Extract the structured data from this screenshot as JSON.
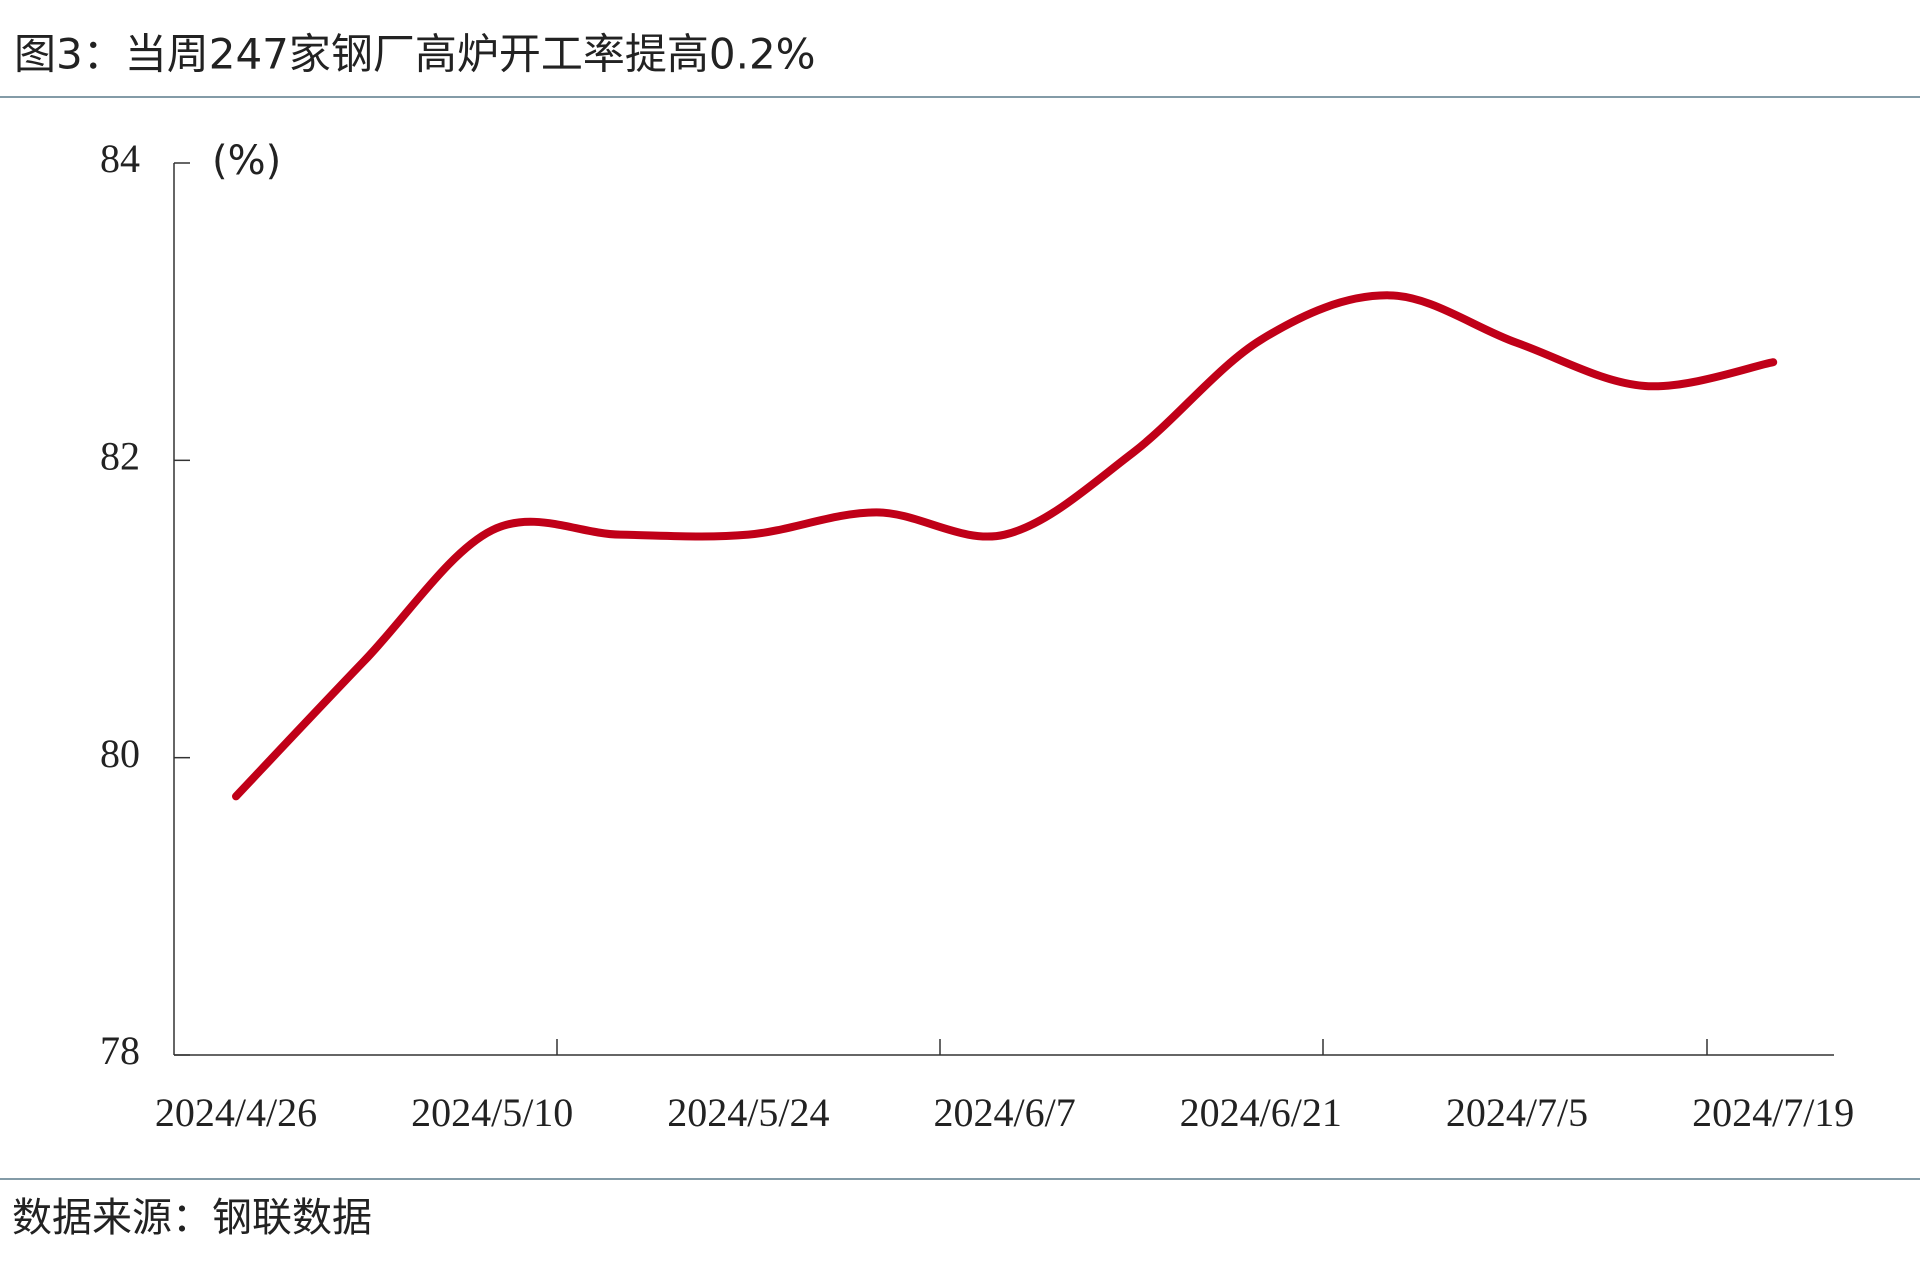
{
  "chart_data": {
    "type": "line",
    "title": "图3：当周247家钢厂高炉开工率提高0.2%",
    "y_label": "(%)",
    "source": "数据来源：钢联数据",
    "categories": [
      "2024/4/26",
      null,
      "2024/5/10",
      null,
      "2024/5/24",
      null,
      "2024/6/7",
      null,
      "2024/6/21",
      null,
      "2024/7/5",
      null,
      "2024/7/19"
    ],
    "series": [
      {
        "name": "高炉开工率",
        "color": "#c00018",
        "values": [
          79.74,
          80.65,
          81.53,
          81.5,
          81.5,
          81.65,
          81.5,
          82.05,
          82.81,
          83.11,
          82.79,
          82.5,
          82.66
        ]
      }
    ],
    "ylim": [
      78,
      84
    ],
    "yticks": [
      78,
      80,
      82,
      84
    ],
    "grid": false
  }
}
